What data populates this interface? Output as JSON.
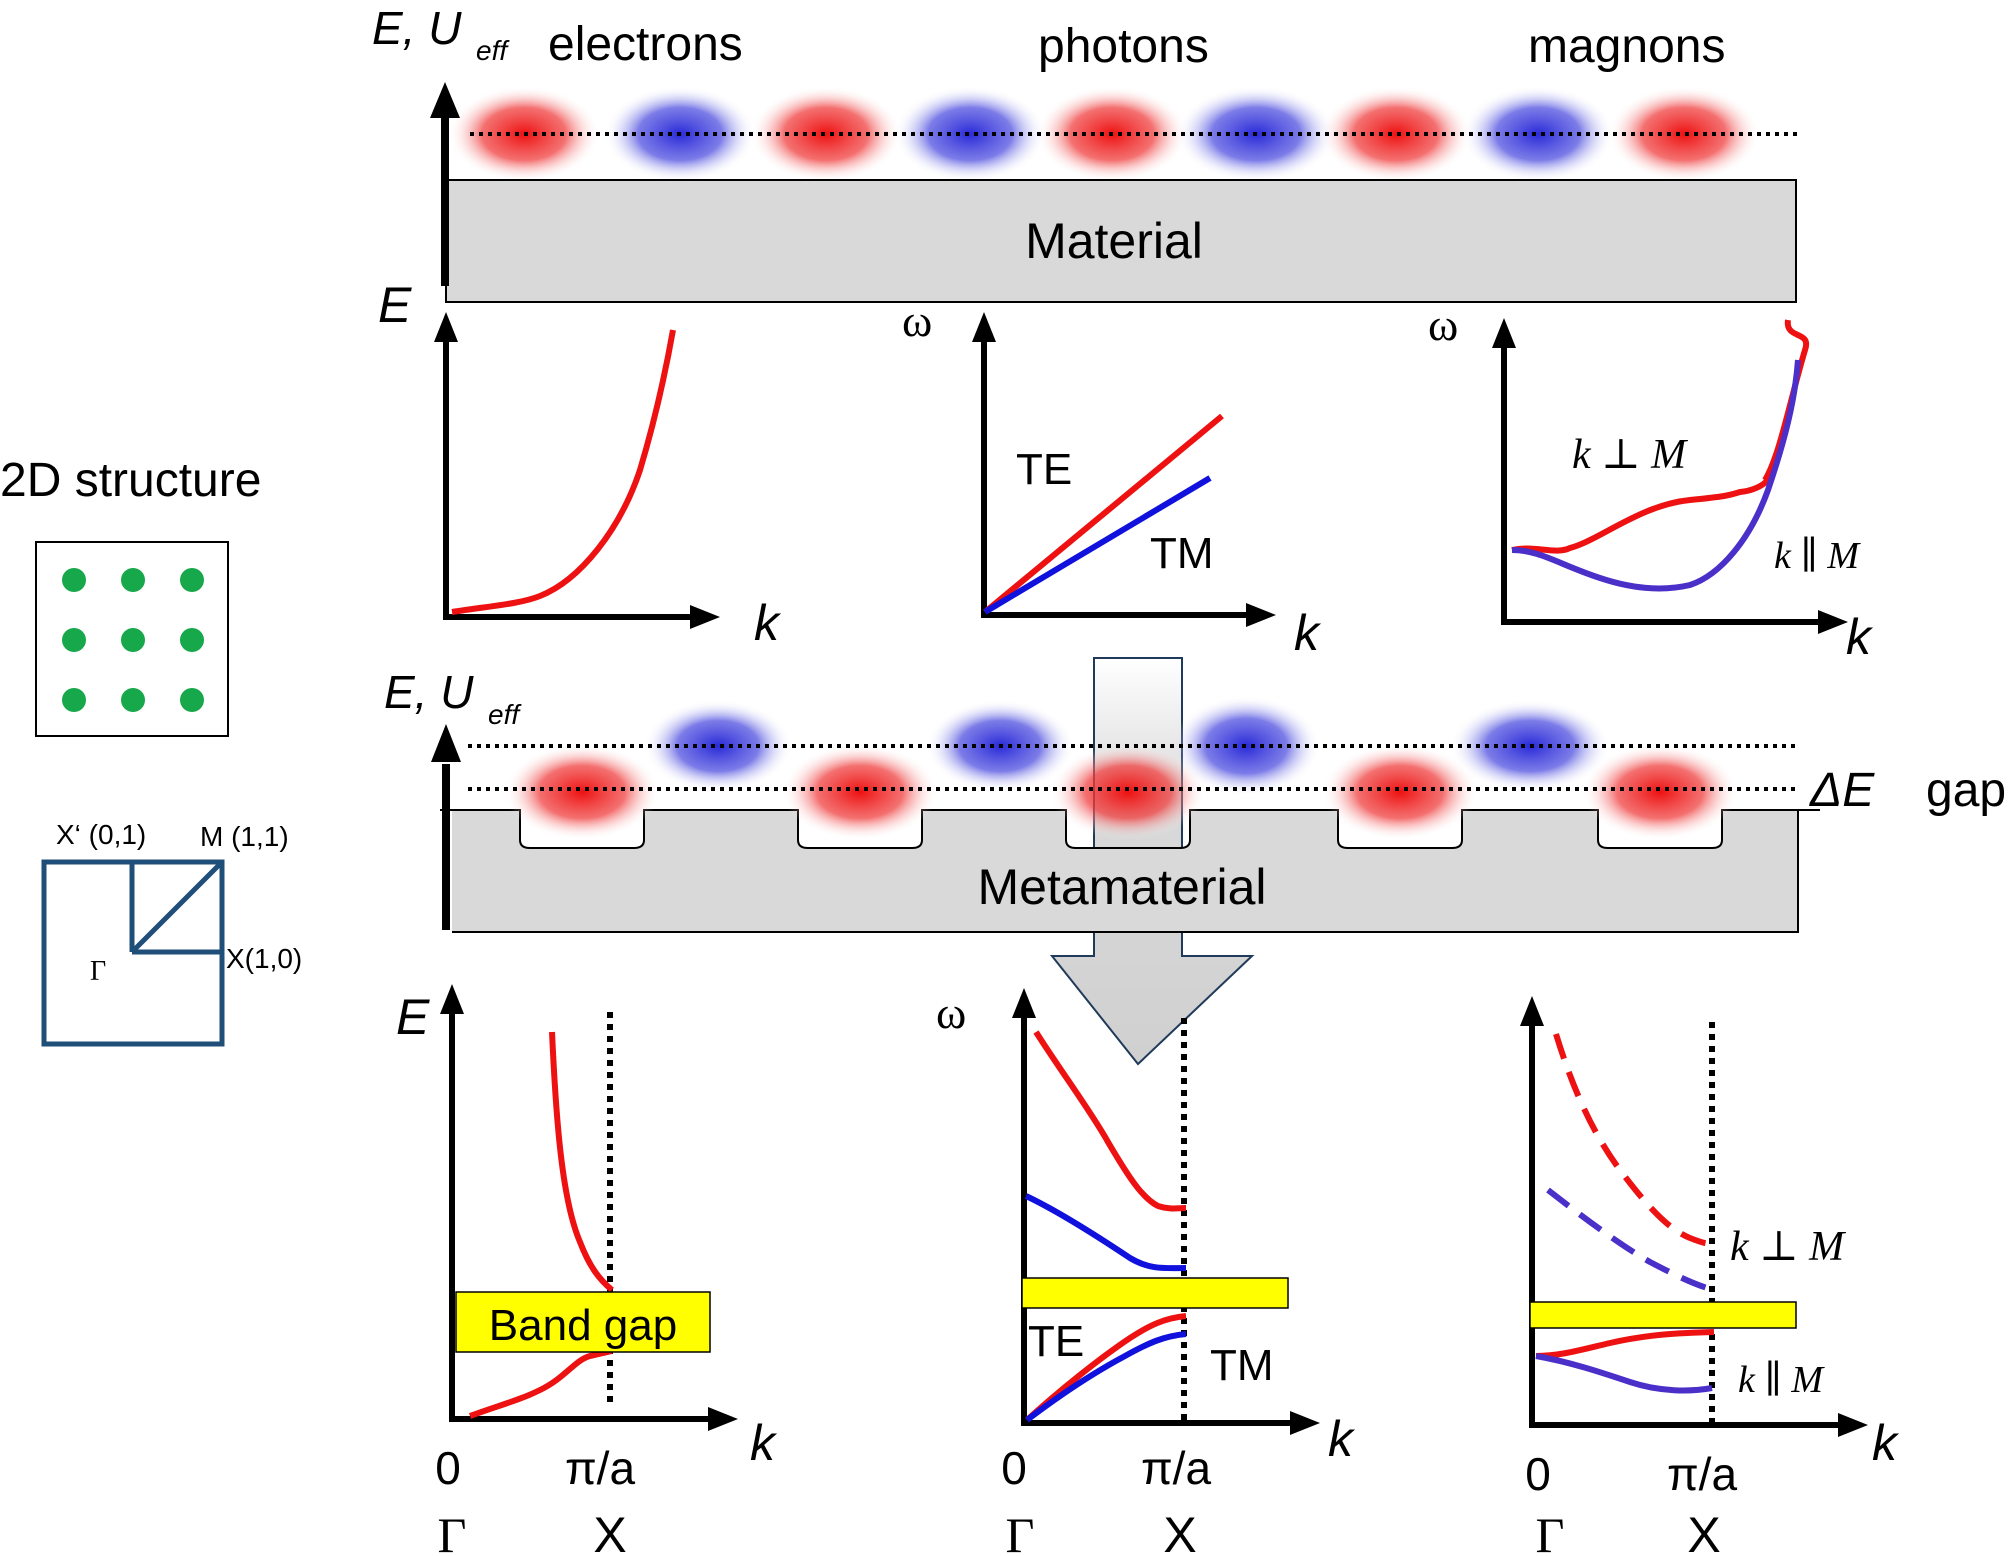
{
  "top": {
    "axis_label_main": "E, U",
    "axis_label_sub": "eff",
    "columns": [
      "electrons",
      "photons",
      "magnons"
    ],
    "slab_label": "Material"
  },
  "dispersion_plots": [
    {
      "y_label": "E",
      "x_label": "k"
    },
    {
      "y_label": "ω",
      "x_label": "k",
      "curve_labels": [
        "TE",
        "TM"
      ]
    },
    {
      "y_label": "ω",
      "x_label": "k",
      "curve_labels": [
        "k ⊥ M",
        "k ∥ M"
      ]
    }
  ],
  "structure_panel": {
    "title": "2D structure",
    "bz_labels": {
      "x_prime": "X‘ (0,1)",
      "m": "M (1,1)",
      "x": "X(1,0)",
      "gamma": "Γ"
    }
  },
  "meta": {
    "axis_label_main": "E, U",
    "axis_label_sub": "eff",
    "gap_symbol": "ΔE",
    "gap_word": "gap",
    "slab_label": "Metamaterial"
  },
  "band_plots": [
    {
      "y_label": "E",
      "x_label": "k",
      "tick_0": "0",
      "tick_pi": "π/a",
      "point_gamma": "Γ",
      "point_x": "X",
      "gap_label": "Band gap"
    },
    {
      "y_label": "ω",
      "x_label": "k",
      "tick_0": "0",
      "tick_pi": "π/a",
      "point_gamma": "Γ",
      "point_x": "X",
      "curve_labels": [
        "TE",
        "TM"
      ]
    },
    {
      "x_label": "k",
      "tick_0": "0",
      "tick_pi": "π/a",
      "point_gamma": "Γ",
      "point_x": "X",
      "curve_labels": [
        "k ⊥ M",
        "k ∥ M"
      ]
    }
  ],
  "colors": {
    "red": "#ee1111",
    "blue": "#1111dd",
    "purple": "#4b2fc9",
    "slab_fill": "#d9d9d9",
    "gap_yellow": "#ffff00",
    "dot_green": "#16a84a",
    "bz_navy": "#1f4e79"
  }
}
